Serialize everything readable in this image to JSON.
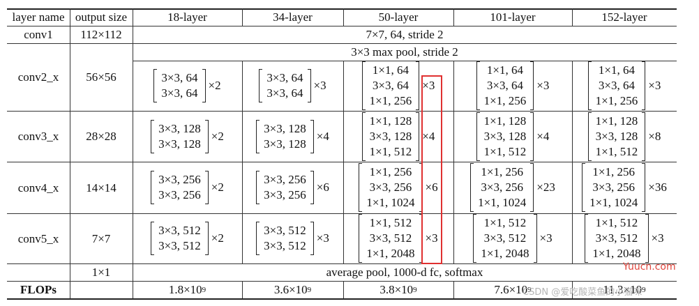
{
  "header": {
    "layer_name": "layer name",
    "output_size": "output size",
    "columns": [
      "18-layer",
      "34-layer",
      "50-layer",
      "101-layer",
      "152-layer"
    ]
  },
  "conv1": {
    "name": "conv1",
    "output": "112×112",
    "spec": "7×7, 64, stride 2"
  },
  "maxpool": "3×3 max pool, stride 2",
  "stages": [
    {
      "name": "conv2_x",
      "output": "56×56",
      "blocks": [
        {
          "lines": [
            "3×3, 64",
            "3×3, 64"
          ],
          "mult": "×2"
        },
        {
          "lines": [
            "3×3, 64",
            "3×3, 64"
          ],
          "mult": "×3"
        },
        {
          "lines": [
            "1×1, 64",
            "3×3, 64",
            "1×1, 256"
          ],
          "mult": "×3"
        },
        {
          "lines": [
            "1×1, 64",
            "3×3, 64",
            "1×1, 256"
          ],
          "mult": "×3"
        },
        {
          "lines": [
            "1×1, 64",
            "3×3, 64",
            "1×1, 256"
          ],
          "mult": "×3"
        }
      ]
    },
    {
      "name": "conv3_x",
      "output": "28×28",
      "blocks": [
        {
          "lines": [
            "3×3, 128",
            "3×3, 128"
          ],
          "mult": "×2"
        },
        {
          "lines": [
            "3×3, 128",
            "3×3, 128"
          ],
          "mult": "×4"
        },
        {
          "lines": [
            "1×1, 128",
            "3×3, 128",
            "1×1, 512"
          ],
          "mult": "×4"
        },
        {
          "lines": [
            "1×1, 128",
            "3×3, 128",
            "1×1, 512"
          ],
          "mult": "×4"
        },
        {
          "lines": [
            "1×1, 128",
            "3×3, 128",
            "1×1, 512"
          ],
          "mult": "×8"
        }
      ]
    },
    {
      "name": "conv4_x",
      "output": "14×14",
      "blocks": [
        {
          "lines": [
            "3×3, 256",
            "3×3, 256"
          ],
          "mult": "×2"
        },
        {
          "lines": [
            "3×3, 256",
            "3×3, 256"
          ],
          "mult": "×6"
        },
        {
          "lines": [
            "1×1, 256",
            "3×3, 256",
            "1×1, 1024"
          ],
          "mult": "×6"
        },
        {
          "lines": [
            "1×1, 256",
            "3×3, 256",
            "1×1, 1024"
          ],
          "mult": "×23"
        },
        {
          "lines": [
            "1×1, 256",
            "3×3, 256",
            "1×1, 1024"
          ],
          "mult": "×36"
        }
      ]
    },
    {
      "name": "conv5_x",
      "output": "7×7",
      "blocks": [
        {
          "lines": [
            "3×3, 512",
            "3×3, 512"
          ],
          "mult": "×2"
        },
        {
          "lines": [
            "3×3, 512",
            "3×3, 512"
          ],
          "mult": "×3"
        },
        {
          "lines": [
            "1×1, 512",
            "3×3, 512",
            "1×1, 2048"
          ],
          "mult": "×3"
        },
        {
          "lines": [
            "1×1, 512",
            "3×3, 512",
            "1×1, 2048"
          ],
          "mult": "×3"
        },
        {
          "lines": [
            "1×1, 512",
            "3×3, 512",
            "1×1, 2048"
          ],
          "mult": "×3"
        }
      ]
    }
  ],
  "final": {
    "output": "1×1",
    "spec": "average pool, 1000-d fc, softmax"
  },
  "flops": {
    "label": "FLOPs",
    "values": [
      {
        "mantissa": "1.8×10",
        "exp": "9"
      },
      {
        "mantissa": "3.6×10",
        "exp": "9"
      },
      {
        "mantissa": "3.8×10",
        "exp": "9"
      },
      {
        "mantissa": "7.6×10",
        "exp": "9"
      },
      {
        "mantissa": "11.3×10",
        "exp": "9"
      }
    ]
  },
  "watermarks": {
    "site": "Yuucn.com",
    "csdn": "CSDN @爱吃酸菜鱼的小猫咪"
  },
  "highlight_color": "#e03030"
}
